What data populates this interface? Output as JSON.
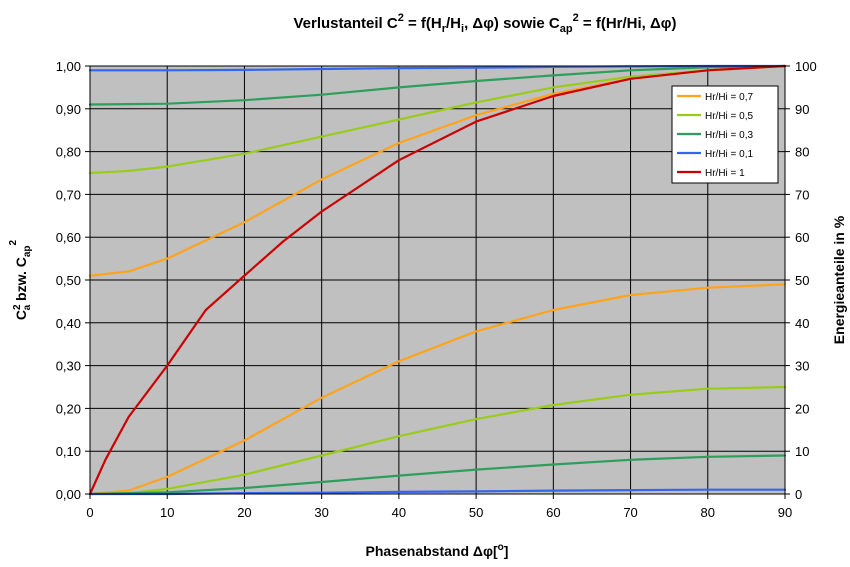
{
  "chart_data": {
    "type": "line",
    "title": {
      "main": "Verlustanteil C",
      "sup1": "2",
      "mid1": " = f(H",
      "sub1": "r",
      "mid2": "/H",
      "sub2": "i",
      "mid3": ", Δφ) sowie C",
      "sub3": "ap",
      "sup2": "2",
      "end": " = f(Hr/Hi, Δφ)"
    },
    "xlabel": {
      "text": "Phasenabstand Δφ[",
      "sup": "o",
      "end": "]"
    },
    "ylabel_left": {
      "c": "C",
      "sup1": "2",
      "sub1": "a",
      "mid": " bzw. C",
      "sub2": "ap",
      "sup2": "2"
    },
    "ylabel_right": "Energieanteile in %",
    "xlim": [
      0,
      90
    ],
    "ylim_left": [
      0,
      1
    ],
    "ylim_right": [
      0,
      100
    ],
    "x_ticks": [
      "0",
      "10",
      "20",
      "30",
      "40",
      "50",
      "60",
      "70",
      "80",
      "90"
    ],
    "y_ticks_left": [
      "0,00",
      "0,10",
      "0,20",
      "0,30",
      "0,40",
      "0,50",
      "0,60",
      "0,70",
      "0,80",
      "0,90",
      "1,00"
    ],
    "y_ticks_right": [
      "0",
      "10",
      "20",
      "30",
      "40",
      "50",
      "60",
      "70",
      "80",
      "90",
      "100"
    ],
    "grid": true,
    "plot_background": "#c0c0c0",
    "legend_position": "top-right",
    "legend": [
      {
        "label": "Hr/Hi = 0,7",
        "color": "#ffa31a"
      },
      {
        "label": "Hr/Hi = 0,5",
        "color": "#99cc1a"
      },
      {
        "label": "Hr/Hi = 0,3",
        "color": "#2e9e5c"
      },
      {
        "label": "Hr/Hi = 0,1",
        "color": "#3366ee"
      },
      {
        "label": "Hr/Hi = 1",
        "color": "#cc0000"
      }
    ],
    "series": [
      {
        "legend_index": 0,
        "x": [
          0,
          5,
          10,
          20,
          30,
          40,
          50,
          60,
          70,
          80,
          90
        ],
        "y": [
          0.51,
          0.52,
          0.55,
          0.635,
          0.735,
          0.82,
          0.885,
          0.935,
          0.97,
          0.99,
          1.0
        ]
      },
      {
        "legend_index": 0,
        "x": [
          0,
          5,
          10,
          20,
          30,
          40,
          50,
          60,
          70,
          80,
          90
        ],
        "y": [
          0.0,
          0.008,
          0.04,
          0.125,
          0.225,
          0.31,
          0.38,
          0.43,
          0.465,
          0.482,
          0.49
        ]
      },
      {
        "legend_index": 1,
        "x": [
          0,
          5,
          10,
          20,
          30,
          40,
          50,
          60,
          70,
          80,
          90
        ],
        "y": [
          0.75,
          0.755,
          0.765,
          0.795,
          0.835,
          0.875,
          0.915,
          0.95,
          0.975,
          0.99,
          1.0
        ]
      },
      {
        "legend_index": 1,
        "x": [
          0,
          5,
          10,
          20,
          30,
          40,
          50,
          60,
          70,
          80,
          90
        ],
        "y": [
          0.0,
          0.002,
          0.012,
          0.045,
          0.09,
          0.135,
          0.175,
          0.208,
          0.232,
          0.246,
          0.25
        ]
      },
      {
        "legend_index": 2,
        "x": [
          0,
          10,
          20,
          30,
          40,
          50,
          60,
          70,
          80,
          90
        ],
        "y": [
          0.91,
          0.912,
          0.92,
          0.933,
          0.95,
          0.965,
          0.978,
          0.99,
          0.997,
          1.0
        ]
      },
      {
        "legend_index": 2,
        "x": [
          0,
          10,
          20,
          30,
          40,
          50,
          60,
          70,
          80,
          90
        ],
        "y": [
          0.0,
          0.004,
          0.014,
          0.028,
          0.043,
          0.057,
          0.069,
          0.08,
          0.087,
          0.09
        ]
      },
      {
        "legend_index": 3,
        "x": [
          0,
          10,
          20,
          30,
          40,
          50,
          60,
          70,
          80,
          90
        ],
        "y": [
          0.99,
          0.99,
          0.991,
          0.993,
          0.995,
          0.996,
          0.998,
          0.999,
          1.0,
          1.0
        ]
      },
      {
        "legend_index": 3,
        "x": [
          0,
          10,
          20,
          30,
          40,
          50,
          60,
          70,
          80,
          90
        ],
        "y": [
          0.0,
          0.0,
          0.002,
          0.003,
          0.005,
          0.006,
          0.008,
          0.009,
          0.01,
          0.01
        ]
      },
      {
        "legend_index": 4,
        "x": [
          0,
          2,
          5,
          10,
          15,
          20,
          25,
          30,
          40,
          50,
          60,
          70,
          80,
          90
        ],
        "y": [
          0.0,
          0.08,
          0.18,
          0.3,
          0.43,
          0.51,
          0.59,
          0.66,
          0.78,
          0.87,
          0.93,
          0.97,
          0.99,
          1.0
        ]
      }
    ]
  }
}
